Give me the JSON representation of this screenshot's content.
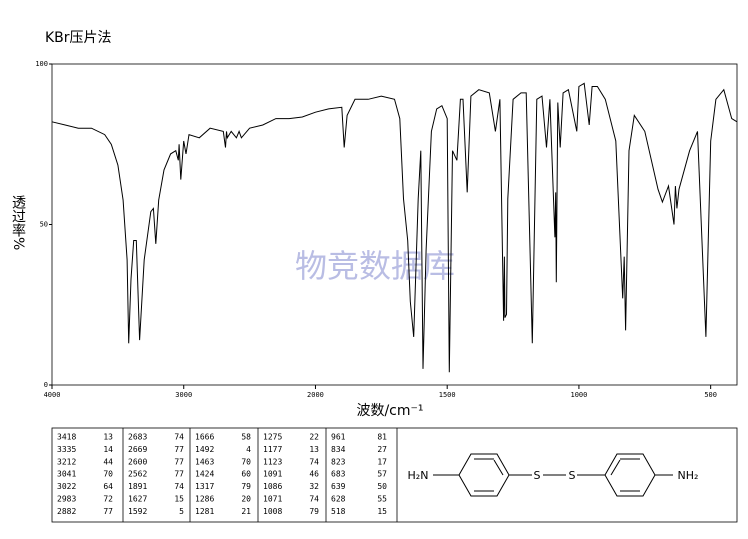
{
  "chart_data": {
    "type": "line",
    "title": "KBr压片法",
    "xlabel": "波数/cm⁻¹",
    "ylabel": "透过率%",
    "watermark": "物竞数据库",
    "color": "#000000",
    "xlim": [
      4000,
      400
    ],
    "ylim": [
      0,
      100
    ],
    "x_scale_change": {
      "at": 2000,
      "factor": 2
    },
    "xticks": [
      4000,
      3000,
      2000,
      1500,
      1000,
      500
    ],
    "yticks": [
      0,
      50,
      100
    ],
    "x": [
      4000,
      3900,
      3800,
      3700,
      3600,
      3550,
      3500,
      3460,
      3430,
      3418,
      3400,
      3380,
      3360,
      3335,
      3300,
      3250,
      3230,
      3212,
      3190,
      3150,
      3100,
      3060,
      3041,
      3035,
      3022,
      3000,
      2983,
      2960,
      2882,
      2800,
      2700,
      2683,
      2675,
      2669,
      2640,
      2600,
      2580,
      2562,
      2500,
      2400,
      2300,
      2200,
      2100,
      2000,
      1950,
      1900,
      1891,
      1880,
      1850,
      1800,
      1750,
      1700,
      1680,
      1666,
      1650,
      1640,
      1627,
      1610,
      1600,
      1592,
      1580,
      1560,
      1540,
      1520,
      1500,
      1492,
      1480,
      1463,
      1450,
      1440,
      1424,
      1410,
      1380,
      1340,
      1317,
      1300,
      1286,
      1283,
      1281,
      1275,
      1270,
      1250,
      1220,
      1200,
      1177,
      1160,
      1140,
      1123,
      1110,
      1091,
      1088,
      1086,
      1080,
      1071,
      1060,
      1040,
      1008,
      1000,
      980,
      961,
      950,
      930,
      900,
      860,
      834,
      828,
      823,
      810,
      790,
      750,
      700,
      683,
      660,
      639,
      634,
      628,
      620,
      580,
      550,
      518,
      500,
      480,
      450,
      420,
      400
    ],
    "values": [
      82,
      81,
      80,
      80,
      78,
      75,
      68.5,
      57.6,
      39,
      13,
      33,
      45,
      45,
      14,
      39,
      54,
      55,
      44,
      57.6,
      67,
      72,
      73,
      70,
      75,
      64,
      76,
      72,
      78,
      77,
      80,
      79,
      74,
      79,
      77,
      79,
      77,
      79,
      77,
      80,
      81,
      83,
      83,
      83.5,
      85,
      86,
      86.5,
      74,
      84,
      89,
      89,
      90,
      89,
      83,
      58,
      45,
      26,
      15,
      58,
      73,
      5,
      42,
      79,
      86,
      87,
      83,
      4,
      73,
      70,
      89,
      89,
      60,
      90,
      92,
      91,
      79,
      89,
      20,
      40,
      21,
      22,
      58,
      89,
      91,
      91,
      13,
      89,
      90,
      74,
      89,
      46,
      60,
      32,
      88,
      74,
      91,
      92,
      79,
      93,
      94,
      81,
      93,
      93,
      89,
      76,
      27,
      40,
      17,
      73,
      84,
      79,
      61,
      57,
      62,
      50,
      62,
      55,
      61,
      73,
      79,
      15,
      76,
      89,
      92,
      83,
      82
    ],
    "peak_table": {
      "wavenumber": [
        3418,
        3335,
        3212,
        3041,
        3022,
        2983,
        2882,
        2683,
        2669,
        2600,
        2562,
        1891,
        1627,
        1592,
        1666,
        1492,
        1463,
        1424,
        1317,
        1286,
        1281,
        1275,
        1177,
        1123,
        1091,
        1086,
        1071,
        1008,
        961,
        834,
        823,
        683,
        639,
        628,
        518
      ],
      "transmittance": [
        13,
        14,
        44,
        70,
        64,
        72,
        77,
        74,
        77,
        77,
        77,
        74,
        15,
        5,
        58,
        4,
        70,
        60,
        79,
        20,
        21,
        22,
        13,
        74,
        46,
        32,
        74,
        79,
        81,
        27,
        17,
        57,
        50,
        55,
        15
      ]
    },
    "molecule": {
      "left": "H₂N",
      "s1": "S",
      "s2": "S",
      "right": "NH₂"
    }
  }
}
